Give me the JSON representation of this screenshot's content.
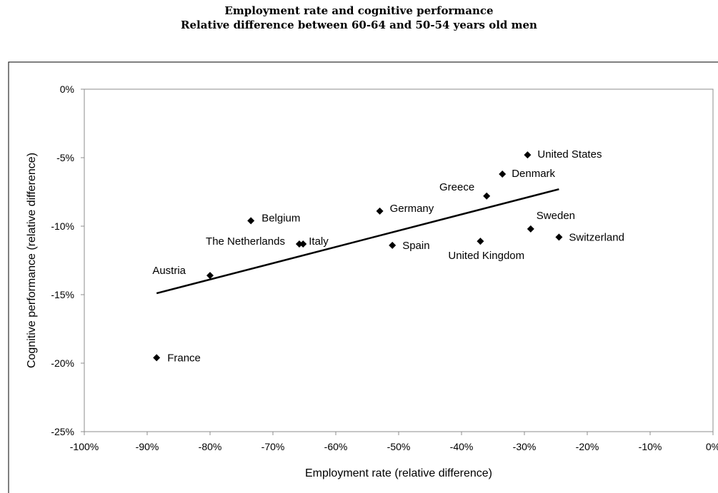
{
  "chart_data": {
    "type": "scatter",
    "title": "Employment rate and cognitive performance",
    "subtitle": "Relative difference between 60-64 and 50-54 years old men",
    "xlabel": "Employment rate (relative difference)",
    "ylabel": "Cognitive performance (relative difference)",
    "xlim": [
      -100,
      0
    ],
    "ylim": [
      -25,
      0
    ],
    "x_ticks": [
      "-100%",
      "-90%",
      "-80%",
      "-70%",
      "-60%",
      "-50%",
      "-40%",
      "-30%",
      "-20%",
      "-10%",
      "0%"
    ],
    "y_ticks": [
      "0%",
      "-5%",
      "-10%",
      "-15%",
      "-20%",
      "-25%"
    ],
    "grid": false,
    "points": [
      {
        "label": "United States",
        "x": -29.5,
        "y": -4.8
      },
      {
        "label": "Denmark",
        "x": -33.5,
        "y": -6.2
      },
      {
        "label": "Greece",
        "x": -36,
        "y": -7.8
      },
      {
        "label": "Germany",
        "x": -53,
        "y": -8.9
      },
      {
        "label": "Belgium",
        "x": -73.5,
        "y": -9.6
      },
      {
        "label": "Sweden",
        "x": -29,
        "y": -10.2
      },
      {
        "label": "Switzerland",
        "x": -24.5,
        "y": -10.8
      },
      {
        "label": "United Kingdom",
        "x": -37,
        "y": -11.1
      },
      {
        "label": "The Netherlands",
        "x": -65.8,
        "y": -11.3
      },
      {
        "label": "Italy",
        "x": -65.2,
        "y": -11.3
      },
      {
        "label": "Spain",
        "x": -51,
        "y": -11.4
      },
      {
        "label": "Austria",
        "x": -80,
        "y": -13.6
      },
      {
        "label": "France",
        "x": -88.5,
        "y": -19.6
      }
    ],
    "trendline": {
      "x": [
        -88.5,
        -24.5
      ],
      "y": [
        -14.9,
        -7.3
      ]
    }
  }
}
